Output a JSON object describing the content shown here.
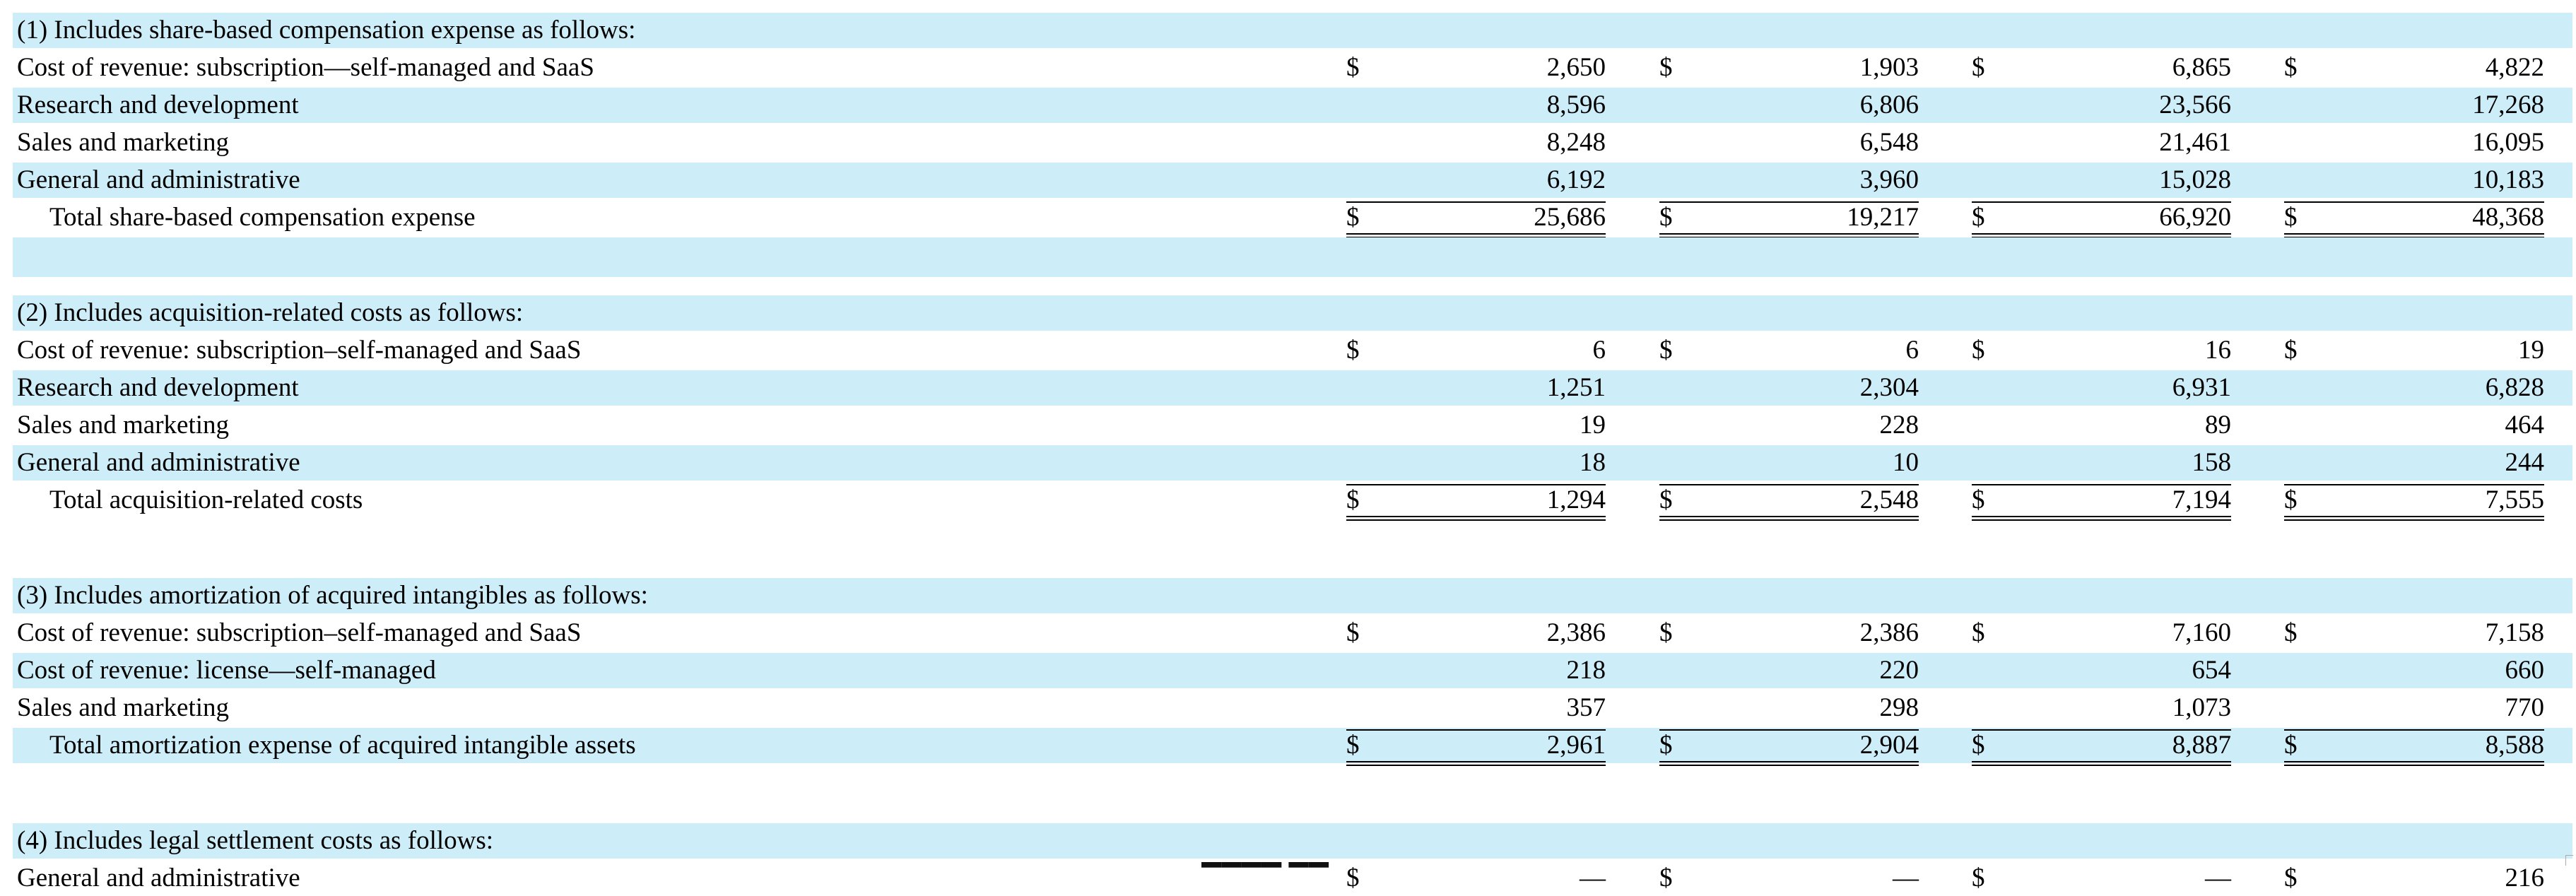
{
  "sections": [
    {
      "header": "(1) Includes share-based compensation expense as follows:",
      "rows": [
        {
          "label": "Cost of revenue: subscription—self-managed and SaaS",
          "dollar": true,
          "values": [
            "2,650",
            "1,903",
            "6,865",
            "4,822"
          ]
        },
        {
          "label": "Research and development",
          "dollar": false,
          "values": [
            "8,596",
            "6,806",
            "23,566",
            "17,268"
          ]
        },
        {
          "label": "Sales and marketing",
          "dollar": false,
          "values": [
            "8,248",
            "6,548",
            "21,461",
            "16,095"
          ]
        },
        {
          "label": "General and administrative",
          "dollar": false,
          "values": [
            "6,192",
            "3,960",
            "15,028",
            "10,183"
          ]
        }
      ],
      "total": {
        "label": "Total share-based compensation expense",
        "values": [
          "25,686",
          "19,217",
          "66,920",
          "48,368"
        ]
      }
    },
    {
      "header": "(2) Includes acquisition-related costs as follows:",
      "rows": [
        {
          "label": "Cost of revenue: subscription–self-managed and SaaS",
          "dollar": true,
          "values": [
            "6",
            "6",
            "16",
            "19"
          ]
        },
        {
          "label": "Research and development",
          "dollar": false,
          "values": [
            "1,251",
            "2,304",
            "6,931",
            "6,828"
          ]
        },
        {
          "label": "Sales and marketing",
          "dollar": false,
          "values": [
            "19",
            "228",
            "89",
            "464"
          ]
        },
        {
          "label": "General and administrative",
          "dollar": false,
          "values": [
            "18",
            "10",
            "158",
            "244"
          ]
        }
      ],
      "total": {
        "label": "Total acquisition-related costs",
        "values": [
          "1,294",
          "2,548",
          "7,194",
          "7,555"
        ]
      }
    },
    {
      "header": "(3) Includes amortization of acquired intangibles as follows:",
      "rows": [
        {
          "label": "Cost of revenue: subscription–self-managed and SaaS",
          "dollar": true,
          "values": [
            "2,386",
            "2,386",
            "7,160",
            "7,158"
          ]
        },
        {
          "label": "Cost of revenue: license—self-managed",
          "dollar": false,
          "values": [
            "218",
            "220",
            "654",
            "660"
          ]
        },
        {
          "label": "Sales and marketing",
          "dollar": false,
          "values": [
            "357",
            "298",
            "1,073",
            "770"
          ]
        }
      ],
      "total": {
        "label": "Total amortization expense of acquired intangible assets",
        "values": [
          "2,961",
          "2,904",
          "8,887",
          "8,588"
        ]
      }
    },
    {
      "header": "(4) Includes legal settlement costs as follows:",
      "rows": [
        {
          "label": "General and administrative",
          "dollar": true,
          "values": [
            "—",
            "—",
            "—",
            "216"
          ]
        }
      ],
      "total": null
    }
  ],
  "currency_symbol": "$"
}
